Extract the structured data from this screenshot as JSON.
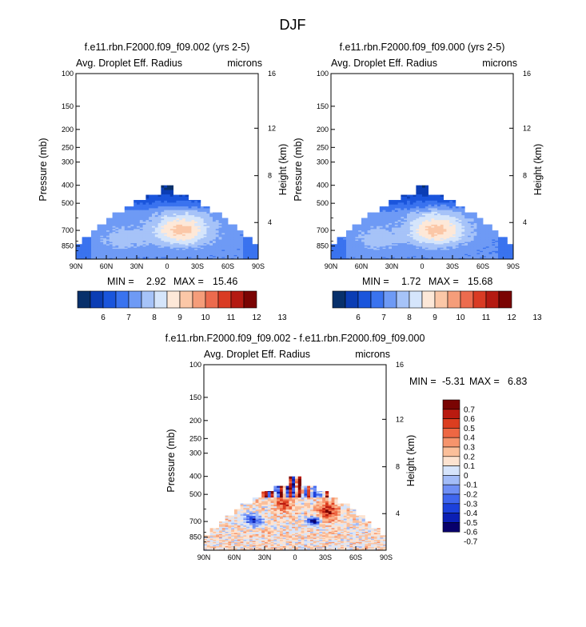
{
  "figure_title": "DJF",
  "colors": {
    "abs_scale": [
      "#08306b",
      "#0b3db4",
      "#1a55dc",
      "#3a73ef",
      "#6e9af5",
      "#a6c3f8",
      "#d5e5fb",
      "#fde8d8",
      "#fbc7a7",
      "#f59d7a",
      "#ec6b4e",
      "#d93b24",
      "#b41a12",
      "#7a0403"
    ],
    "diff_scale": [
      "#08006b",
      "#0b1fb4",
      "#1c41dc",
      "#3f66ef",
      "#6f8ff5",
      "#a3bcf8",
      "#d6e4fb",
      "#fde3d0",
      "#fbbf9a",
      "#f6946c",
      "#ee6743",
      "#dc3e20",
      "#b91a10",
      "#7a0403"
    ]
  },
  "chart_data": [
    {
      "type": "heatmap",
      "title": "f.e11.rbn.F2000.f09_f09.002 (yrs 2-5)",
      "left_label": "Avg. Droplet Eff. Radius",
      "right_label": "microns",
      "ylabel": "Pressure (mb)",
      "ylabel_right": "Height (km)",
      "x_ticks": [
        "90N",
        "60N",
        "30N",
        "0",
        "30S",
        "60S",
        "90S"
      ],
      "y_ticks": [
        "100",
        "150",
        "200",
        "250",
        "300",
        "400",
        "500",
        "700",
        "850"
      ],
      "y_ticks_right": [
        "16",
        "12",
        "8",
        "4"
      ],
      "min_label": "MIN =",
      "min": "2.92",
      "max_label": "MAX =",
      "max": "15.46",
      "colorbar_labels": [
        "6",
        "7",
        "8",
        "9",
        "10",
        "11",
        "12",
        "13"
      ],
      "y_scale": "log-pressure",
      "x_range": [
        "90N",
        "90S"
      ],
      "y_range": [
        100,
        1000
      ]
    },
    {
      "type": "heatmap",
      "title": "f.e11.rbn.F2000.f09_f09.000 (yrs 2-5)",
      "left_label": "Avg. Droplet Eff. Radius",
      "right_label": "microns",
      "ylabel": "Pressure (mb)",
      "ylabel_right": "Height (km)",
      "x_ticks": [
        "90N",
        "60N",
        "30N",
        "0",
        "30S",
        "60S",
        "90S"
      ],
      "y_ticks": [
        "100",
        "150",
        "200",
        "250",
        "300",
        "400",
        "500",
        "700",
        "850"
      ],
      "y_ticks_right": [
        "16",
        "12",
        "8",
        "4"
      ],
      "min_label": "MIN =",
      "min": "1.72",
      "max_label": "MAX =",
      "max": "15.68",
      "colorbar_labels": [
        "6",
        "7",
        "8",
        "9",
        "10",
        "11",
        "12",
        "13"
      ],
      "y_scale": "log-pressure",
      "x_range": [
        "90N",
        "90S"
      ],
      "y_range": [
        100,
        1000
      ]
    },
    {
      "type": "heatmap",
      "title": "f.e11.rbn.F2000.f09_f09.002 - f.e11.rbn.F2000.f09_f09.000",
      "left_label": "Avg. Droplet Eff. Radius",
      "right_label": "microns",
      "ylabel": "Pressure (mb)",
      "ylabel_right": "Height (km)",
      "x_ticks": [
        "90N",
        "60N",
        "30N",
        "0",
        "30S",
        "60S",
        "90S"
      ],
      "y_ticks": [
        "100",
        "150",
        "200",
        "250",
        "300",
        "400",
        "500",
        "700",
        "850"
      ],
      "y_ticks_right": [
        "16",
        "12",
        "8",
        "4"
      ],
      "min_label": "MIN =",
      "min": "-5.31",
      "max_label": "MAX =",
      "max": "6.83",
      "colorbar_labels": [
        "0.7",
        "0.6",
        "0.5",
        "0.4",
        "0.3",
        "0.2",
        "0.1",
        "0",
        "-0.1",
        "-0.2",
        "-0.3",
        "-0.4",
        "-0.5",
        "-0.6",
        "-0.7"
      ],
      "y_scale": "log-pressure",
      "x_range": [
        "90N",
        "90S"
      ],
      "y_range": [
        100,
        1000
      ]
    }
  ]
}
